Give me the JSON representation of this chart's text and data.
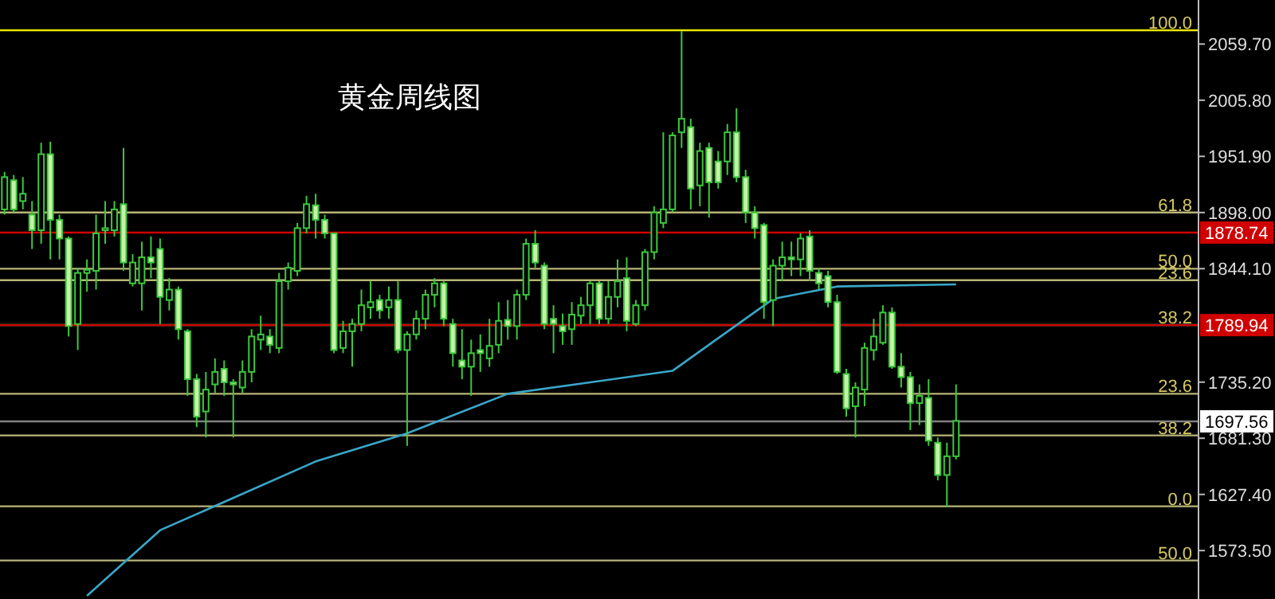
{
  "chart_data": {
    "type": "candlestick",
    "title": "黄金周线图",
    "categories": [
      null,
      null,
      null,
      null,
      null,
      null,
      null,
      null,
      null,
      null,
      null,
      null,
      null,
      null,
      null,
      null,
      null,
      null,
      null,
      null,
      null,
      null,
      null,
      null,
      null,
      null,
      null,
      null,
      null,
      null,
      null,
      null,
      null,
      null,
      null,
      null,
      null,
      null,
      null,
      null,
      null,
      null,
      null,
      null,
      null,
      null,
      null,
      null,
      null,
      null,
      null,
      null,
      null,
      null,
      null,
      null,
      null,
      null,
      null,
      null,
      null,
      null,
      null,
      null,
      null,
      null,
      null,
      null,
      null,
      null,
      null,
      null,
      null,
      null,
      null,
      null,
      null,
      null,
      null,
      null,
      null,
      null,
      null,
      null,
      null,
      null,
      null,
      null,
      null,
      null,
      null,
      null,
      null,
      null,
      null,
      null,
      null,
      null,
      null,
      null,
      null,
      null,
      null,
      null,
      null,
      null,
      null,
      null,
      null,
      null,
      null,
      null,
      null,
      null,
      null,
      null,
      null,
      null,
      null,
      null,
      null,
      null,
      null,
      null,
      null,
      null,
      null,
      null,
      null,
      null,
      null
    ],
    "ohlc": [
      [
        1901,
        1937,
        1896,
        1932
      ],
      [
        1929,
        1934,
        1898,
        1901
      ],
      [
        1909,
        1932,
        1901,
        1916
      ],
      [
        1896,
        1909,
        1863,
        1881
      ],
      [
        1881,
        1965,
        1868,
        1954
      ],
      [
        1954,
        1966,
        1853,
        1891
      ],
      [
        1891,
        1896,
        1853,
        1873
      ],
      [
        1873,
        1875,
        1779,
        1789
      ],
      [
        1791,
        1845,
        1766,
        1840
      ],
      [
        1840,
        1853,
        1822,
        1843
      ],
      [
        1842,
        1896,
        1824,
        1878
      ],
      [
        1881,
        1909,
        1868,
        1883
      ],
      [
        1881,
        1909,
        1875,
        1901
      ],
      [
        1906,
        1960,
        1842,
        1850
      ],
      [
        1830,
        1858,
        1827,
        1850
      ],
      [
        1830,
        1870,
        1804,
        1855
      ],
      [
        1855,
        1875,
        1835,
        1850
      ],
      [
        1863,
        1873,
        1791,
        1817
      ],
      [
        1814,
        1835,
        1804,
        1824
      ],
      [
        1824,
        1827,
        1776,
        1786
      ],
      [
        1784,
        1786,
        1722,
        1738
      ],
      [
        1738,
        1743,
        1692,
        1702
      ],
      [
        1707,
        1745,
        1682,
        1728
      ],
      [
        1733,
        1758,
        1725,
        1745
      ],
      [
        1748,
        1756,
        1722,
        1735
      ],
      [
        1735,
        1738,
        1682,
        1733
      ],
      [
        1730,
        1756,
        1725,
        1745
      ],
      [
        1745,
        1786,
        1735,
        1779
      ],
      [
        1776,
        1799,
        1766,
        1781
      ],
      [
        1779,
        1786,
        1763,
        1771
      ],
      [
        1768,
        1840,
        1763,
        1832
      ],
      [
        1832,
        1850,
        1824,
        1845
      ],
      [
        1842,
        1888,
        1837,
        1883
      ],
      [
        1883,
        1914,
        1878,
        1906
      ],
      [
        1905,
        1916,
        1873,
        1891
      ],
      [
        1891,
        1896,
        1873,
        1878
      ],
      [
        1878,
        1878,
        1763,
        1766
      ],
      [
        1768,
        1794,
        1763,
        1784
      ],
      [
        1784,
        1796,
        1750,
        1791
      ],
      [
        1791,
        1824,
        1784,
        1809
      ],
      [
        1807,
        1832,
        1796,
        1812
      ],
      [
        1814,
        1819,
        1796,
        1804
      ],
      [
        1807,
        1827,
        1796,
        1814
      ],
      [
        1814,
        1832,
        1763,
        1766
      ],
      [
        1766,
        1784,
        1674,
        1781
      ],
      [
        1781,
        1804,
        1776,
        1796
      ],
      [
        1796,
        1824,
        1786,
        1819
      ],
      [
        1819,
        1835,
        1807,
        1830
      ],
      [
        1830,
        1832,
        1789,
        1796
      ],
      [
        1791,
        1796,
        1750,
        1763
      ],
      [
        1756,
        1786,
        1738,
        1750
      ],
      [
        1750,
        1776,
        1722,
        1763
      ],
      [
        1766,
        1781,
        1745,
        1763
      ],
      [
        1758,
        1796,
        1750,
        1770
      ],
      [
        1771,
        1812,
        1763,
        1794
      ],
      [
        1795,
        1814,
        1776,
        1789
      ],
      [
        1789,
        1824,
        1776,
        1819
      ],
      [
        1819,
        1873,
        1814,
        1868
      ],
      [
        1868,
        1881,
        1845,
        1850
      ],
      [
        1847,
        1850,
        1786,
        1791
      ],
      [
        1796,
        1809,
        1763,
        1791
      ],
      [
        1789,
        1801,
        1771,
        1784
      ],
      [
        1786,
        1812,
        1771,
        1800
      ],
      [
        1799,
        1817,
        1791,
        1809
      ],
      [
        1809,
        1832,
        1791,
        1830
      ],
      [
        1830,
        1832,
        1791,
        1796
      ],
      [
        1796,
        1832,
        1791,
        1817
      ],
      [
        1817,
        1853,
        1807,
        1832
      ],
      [
        1835,
        1855,
        1784,
        1794
      ],
      [
        1791,
        1814,
        1789,
        1809
      ],
      [
        1809,
        1863,
        1804,
        1860
      ],
      [
        1860,
        1904,
        1853,
        1898
      ],
      [
        1888,
        1975,
        1883,
        1901
      ],
      [
        1901,
        1975,
        1898,
        1972
      ],
      [
        1975,
        2072,
        1960,
        1988
      ],
      [
        1980,
        1988,
        1901,
        1921
      ],
      [
        1924,
        1965,
        1904,
        1957
      ],
      [
        1960,
        1965,
        1893,
        1927
      ],
      [
        1947,
        1957,
        1921,
        1927
      ],
      [
        1947,
        1983,
        1934,
        1975
      ],
      [
        1975,
        1998,
        1927,
        1932
      ],
      [
        1932,
        1939,
        1888,
        1898
      ],
      [
        1898,
        1904,
        1873,
        1883
      ],
      [
        1886,
        1888,
        1796,
        1812
      ],
      [
        1814,
        1853,
        1789,
        1847
      ],
      [
        1847,
        1870,
        1832,
        1855
      ],
      [
        1855,
        1870,
        1837,
        1853
      ],
      [
        1853,
        1878,
        1837,
        1873
      ],
      [
        1875,
        1881,
        1832,
        1842
      ],
      [
        1840,
        1845,
        1824,
        1830
      ],
      [
        1837,
        1842,
        1807,
        1812
      ],
      [
        1812,
        1819,
        1743,
        1745
      ],
      [
        1743,
        1748,
        1702,
        1710
      ],
      [
        1712,
        1735,
        1682,
        1730
      ],
      [
        1728,
        1773,
        1712,
        1768
      ],
      [
        1766,
        1796,
        1756,
        1779
      ],
      [
        1773,
        1809,
        1771,
        1802
      ],
      [
        1802,
        1807,
        1748,
        1750
      ],
      [
        1750,
        1763,
        1730,
        1740
      ],
      [
        1740,
        1745,
        1689,
        1715
      ],
      [
        1715,
        1733,
        1694,
        1722
      ],
      [
        1720,
        1738,
        1674,
        1679
      ],
      [
        1677,
        1682,
        1641,
        1646
      ],
      [
        1646,
        1677,
        1615,
        1664
      ],
      [
        1664,
        1733,
        1661,
        1698
      ],
      null,
      null,
      null,
      null,
      null,
      null,
      null,
      null,
      null,
      null,
      null,
      null,
      null,
      null,
      null,
      null,
      null,
      null,
      null,
      null,
      null,
      null,
      null,
      null,
      null,
      null
    ],
    "series": [
      {
        "type": "line",
        "color": "#3aa6c8",
        "values": [
          null,
          null,
          null,
          null,
          null,
          null,
          null,
          null,
          null,
          1530,
          null,
          null,
          null,
          null,
          null,
          null,
          null,
          1593,
          null,
          null,
          null,
          null,
          null,
          null,
          null,
          null,
          null,
          null,
          null,
          null,
          null,
          null,
          null,
          null,
          1659,
          null,
          null,
          null,
          null,
          null,
          null,
          null,
          null,
          null,
          1686,
          null,
          null,
          null,
          null,
          null,
          null,
          null,
          null,
          null,
          null,
          1724,
          null,
          null,
          null,
          null,
          null,
          null,
          null,
          null,
          null,
          null,
          null,
          null,
          null,
          null,
          null,
          null,
          null,
          1746,
          null,
          null,
          null,
          null,
          null,
          null,
          null,
          null,
          null,
          null,
          1815,
          null,
          null,
          null,
          null,
          null,
          null,
          1827,
          null,
          null,
          null,
          null,
          null,
          null,
          null,
          null,
          null,
          null,
          null,
          null,
          1829,
          null,
          null,
          null,
          null,
          null,
          null,
          null,
          null,
          null,
          null,
          null,
          null,
          null,
          null,
          null,
          null,
          null,
          null,
          null,
          null,
          null,
          null,
          null,
          null,
          null,
          null
        ]
      }
    ],
    "ylim": [
      1527,
      2102
    ],
    "yticks": [
      {
        "value": 2059.7,
        "label": "2059.70"
      },
      {
        "value": 2005.8,
        "label": "2005.80"
      },
      {
        "value": 1951.9,
        "label": "1951.90"
      },
      {
        "value": 1898,
        "label": "1898.00"
      },
      {
        "value": 1844.1,
        "label": "1844.10"
      },
      {
        "value": 1735.2,
        "label": "1735.20"
      },
      {
        "value": 1681.3,
        "label": "1681.30"
      },
      {
        "value": 1627.4,
        "label": "1627.40"
      },
      {
        "value": 1573.5,
        "label": "1573.50"
      }
    ],
    "ref_lines": [
      {
        "axis": "y",
        "value": 2073,
        "color": "#e6e600"
      },
      {
        "axis": "y",
        "value": 1898,
        "color": "#b8b478"
      },
      {
        "axis": "y",
        "value": 1878.74,
        "label": "1878.74",
        "color": "#d00000"
      },
      {
        "axis": "y",
        "value": 1844,
        "color": "#b8b478"
      },
      {
        "axis": "y",
        "value": 1833,
        "color": "#b8b478"
      },
      {
        "axis": "y",
        "value": 1790,
        "color": "#b8b478"
      },
      {
        "axis": "y",
        "value": 1789.94,
        "label": "1789.94",
        "color": "#d00000"
      },
      {
        "axis": "y",
        "value": 1724,
        "color": "#b8b478"
      },
      {
        "axis": "y",
        "value": 1697.56,
        "label": "1697.56",
        "color": "#808080"
      },
      {
        "axis": "y",
        "value": 1684,
        "color": "#b8b478"
      },
      {
        "axis": "y",
        "value": 1616,
        "color": "#b8b478"
      },
      {
        "axis": "y",
        "value": 1564,
        "color": "#b8b478"
      }
    ],
    "annotations": [
      {
        "text": "100.0",
        "y": 2073
      },
      {
        "text": "61.8",
        "y": 1898
      },
      {
        "text": "50.0",
        "y": 1844
      },
      {
        "text": "23.6",
        "y": 1833
      },
      {
        "text": "38.2",
        "y": 1790
      },
      {
        "text": "23.6",
        "y": 1724
      },
      {
        "text": "38.2",
        "y": 1684
      },
      {
        "text": "0.0",
        "y": 1616
      },
      {
        "text": "50.0",
        "y": 1564
      }
    ],
    "grid": false
  }
}
